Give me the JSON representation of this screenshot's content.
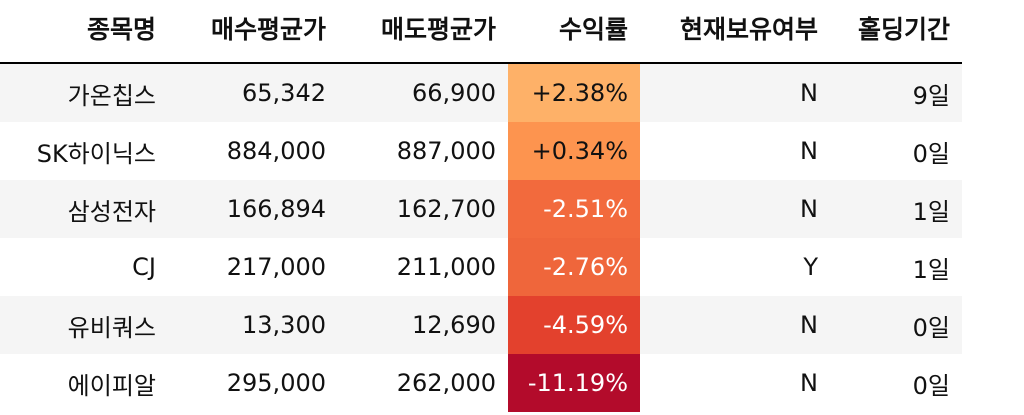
{
  "columns": {
    "name": "종목명",
    "buy_avg": "매수평균가",
    "sell_avg": "매도평균가",
    "return": "수익률",
    "holding": "현재보유여부",
    "days": "홀딩기간"
  },
  "rows": [
    {
      "name": "가온칩스",
      "buy_avg": "65,342",
      "sell_avg": "66,900",
      "return": "+2.38%",
      "holding": "N",
      "days": "9일",
      "return_color": "#feb168",
      "return_text_color": "#111111"
    },
    {
      "name": "SK하이닉스",
      "buy_avg": "884,000",
      "sell_avg": "887,000",
      "return": "+0.34%",
      "holding": "N",
      "days": "0일",
      "return_color": "#fd944f",
      "return_text_color": "#111111"
    },
    {
      "name": "삼성전자",
      "buy_avg": "166,894",
      "sell_avg": "162,700",
      "return": "-2.51%",
      "holding": "N",
      "days": "1일",
      "return_color": "#f26a3d",
      "return_text_color": "#ffffff"
    },
    {
      "name": "CJ",
      "buy_avg": "217,000",
      "sell_avg": "211,000",
      "return": "-2.76%",
      "holding": "Y",
      "days": "1일",
      "return_color": "#ef663b",
      "return_text_color": "#ffffff"
    },
    {
      "name": "유비쿼스",
      "buy_avg": "13,300",
      "sell_avg": "12,690",
      "return": "-4.59%",
      "holding": "N",
      "days": "0일",
      "return_color": "#e3412d",
      "return_text_color": "#ffffff"
    },
    {
      "name": "에이피알",
      "buy_avg": "295,000",
      "sell_avg": "262,000",
      "return": "-11.19%",
      "holding": "N",
      "days": "0일",
      "return_color": "#b30b2b",
      "return_text_color": "#ffffff"
    }
  ]
}
